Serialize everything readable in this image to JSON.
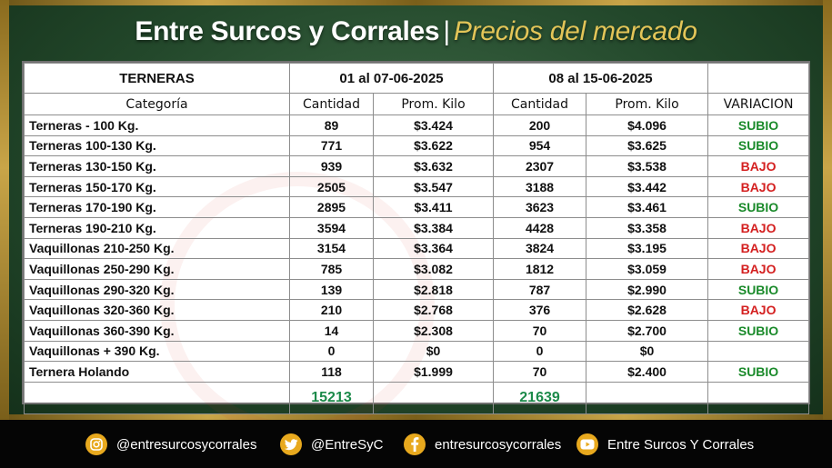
{
  "header": {
    "title": "Entre Surcos y Corrales",
    "separator": "|",
    "subtitle": "Precios del mercado"
  },
  "table": {
    "section": "TERNERAS",
    "period1": "01 al 07-06-2025",
    "period2": "08 al 15-06-2025",
    "columns": [
      "Categoría",
      "Cantidad",
      "Prom. Kilo",
      "Cantidad",
      "Prom. Kilo",
      "VARIACION"
    ],
    "rows": [
      {
        "category": "Terneras - 100 Kg.",
        "qty1": "89",
        "price1": "$3.424",
        "qty2": "200",
        "price2": "$4.096",
        "variation": "SUBIO"
      },
      {
        "category": "Terneras 100-130 Kg.",
        "qty1": "771",
        "price1": "$3.622",
        "qty2": "954",
        "price2": "$3.625",
        "variation": "SUBIO"
      },
      {
        "category": "Terneras 130-150 Kg.",
        "qty1": "939",
        "price1": "$3.632",
        "qty2": "2307",
        "price2": "$3.538",
        "variation": "BAJO"
      },
      {
        "category": "Terneras 150-170 Kg.",
        "qty1": "2505",
        "price1": "$3.547",
        "qty2": "3188",
        "price2": "$3.442",
        "variation": "BAJO"
      },
      {
        "category": "Terneras 170-190 Kg.",
        "qty1": "2895",
        "price1": "$3.411",
        "qty2": "3623",
        "price2": "$3.461",
        "variation": "SUBIO"
      },
      {
        "category": "Terneras 190-210 Kg.",
        "qty1": "3594",
        "price1": "$3.384",
        "qty2": "4428",
        "price2": "$3.358",
        "variation": "BAJO"
      },
      {
        "category": "Vaquillonas 210-250 Kg.",
        "qty1": "3154",
        "price1": "$3.364",
        "qty2": "3824",
        "price2": "$3.195",
        "variation": "BAJO"
      },
      {
        "category": "Vaquillonas 250-290 Kg.",
        "qty1": "785",
        "price1": "$3.082",
        "qty2": "1812",
        "price2": "$3.059",
        "variation": "BAJO"
      },
      {
        "category": "Vaquillonas 290-320 Kg.",
        "qty1": "139",
        "price1": "$2.818",
        "qty2": "787",
        "price2": "$2.990",
        "variation": "SUBIO"
      },
      {
        "category": "Vaquillonas 320-360 Kg.",
        "qty1": "210",
        "price1": "$2.768",
        "qty2": "376",
        "price2": "$2.628",
        "variation": "BAJO"
      },
      {
        "category": "Vaquillonas 360-390 Kg.",
        "qty1": "14",
        "price1": "$2.308",
        "qty2": "70",
        "price2": "$2.700",
        "variation": "SUBIO"
      },
      {
        "category": "Vaquillonas + 390 Kg.",
        "qty1": "0",
        "price1": "$0",
        "qty2": "0",
        "price2": "$0",
        "variation": ""
      },
      {
        "category": "Ternera Holando",
        "qty1": "118",
        "price1": "$1.999",
        "qty2": "70",
        "price2": "$2.400",
        "variation": "SUBIO"
      }
    ],
    "totals": {
      "qty1": "15213",
      "qty2": "21639"
    }
  },
  "colors": {
    "up": "#1a8a2a",
    "down": "#d42020",
    "total": "#1c8a4a",
    "accent": "#e3c558"
  },
  "footer": {
    "instagram": {
      "icon": "instagram-icon",
      "label": "@entresurcosycorrales"
    },
    "twitter": {
      "icon": "twitter-icon",
      "label": "@EntreSyC"
    },
    "facebook": {
      "icon": "facebook-icon",
      "label": "entresurcosycorrales"
    },
    "youtube": {
      "icon": "youtube-icon",
      "label": "Entre Surcos Y Corrales"
    }
  }
}
